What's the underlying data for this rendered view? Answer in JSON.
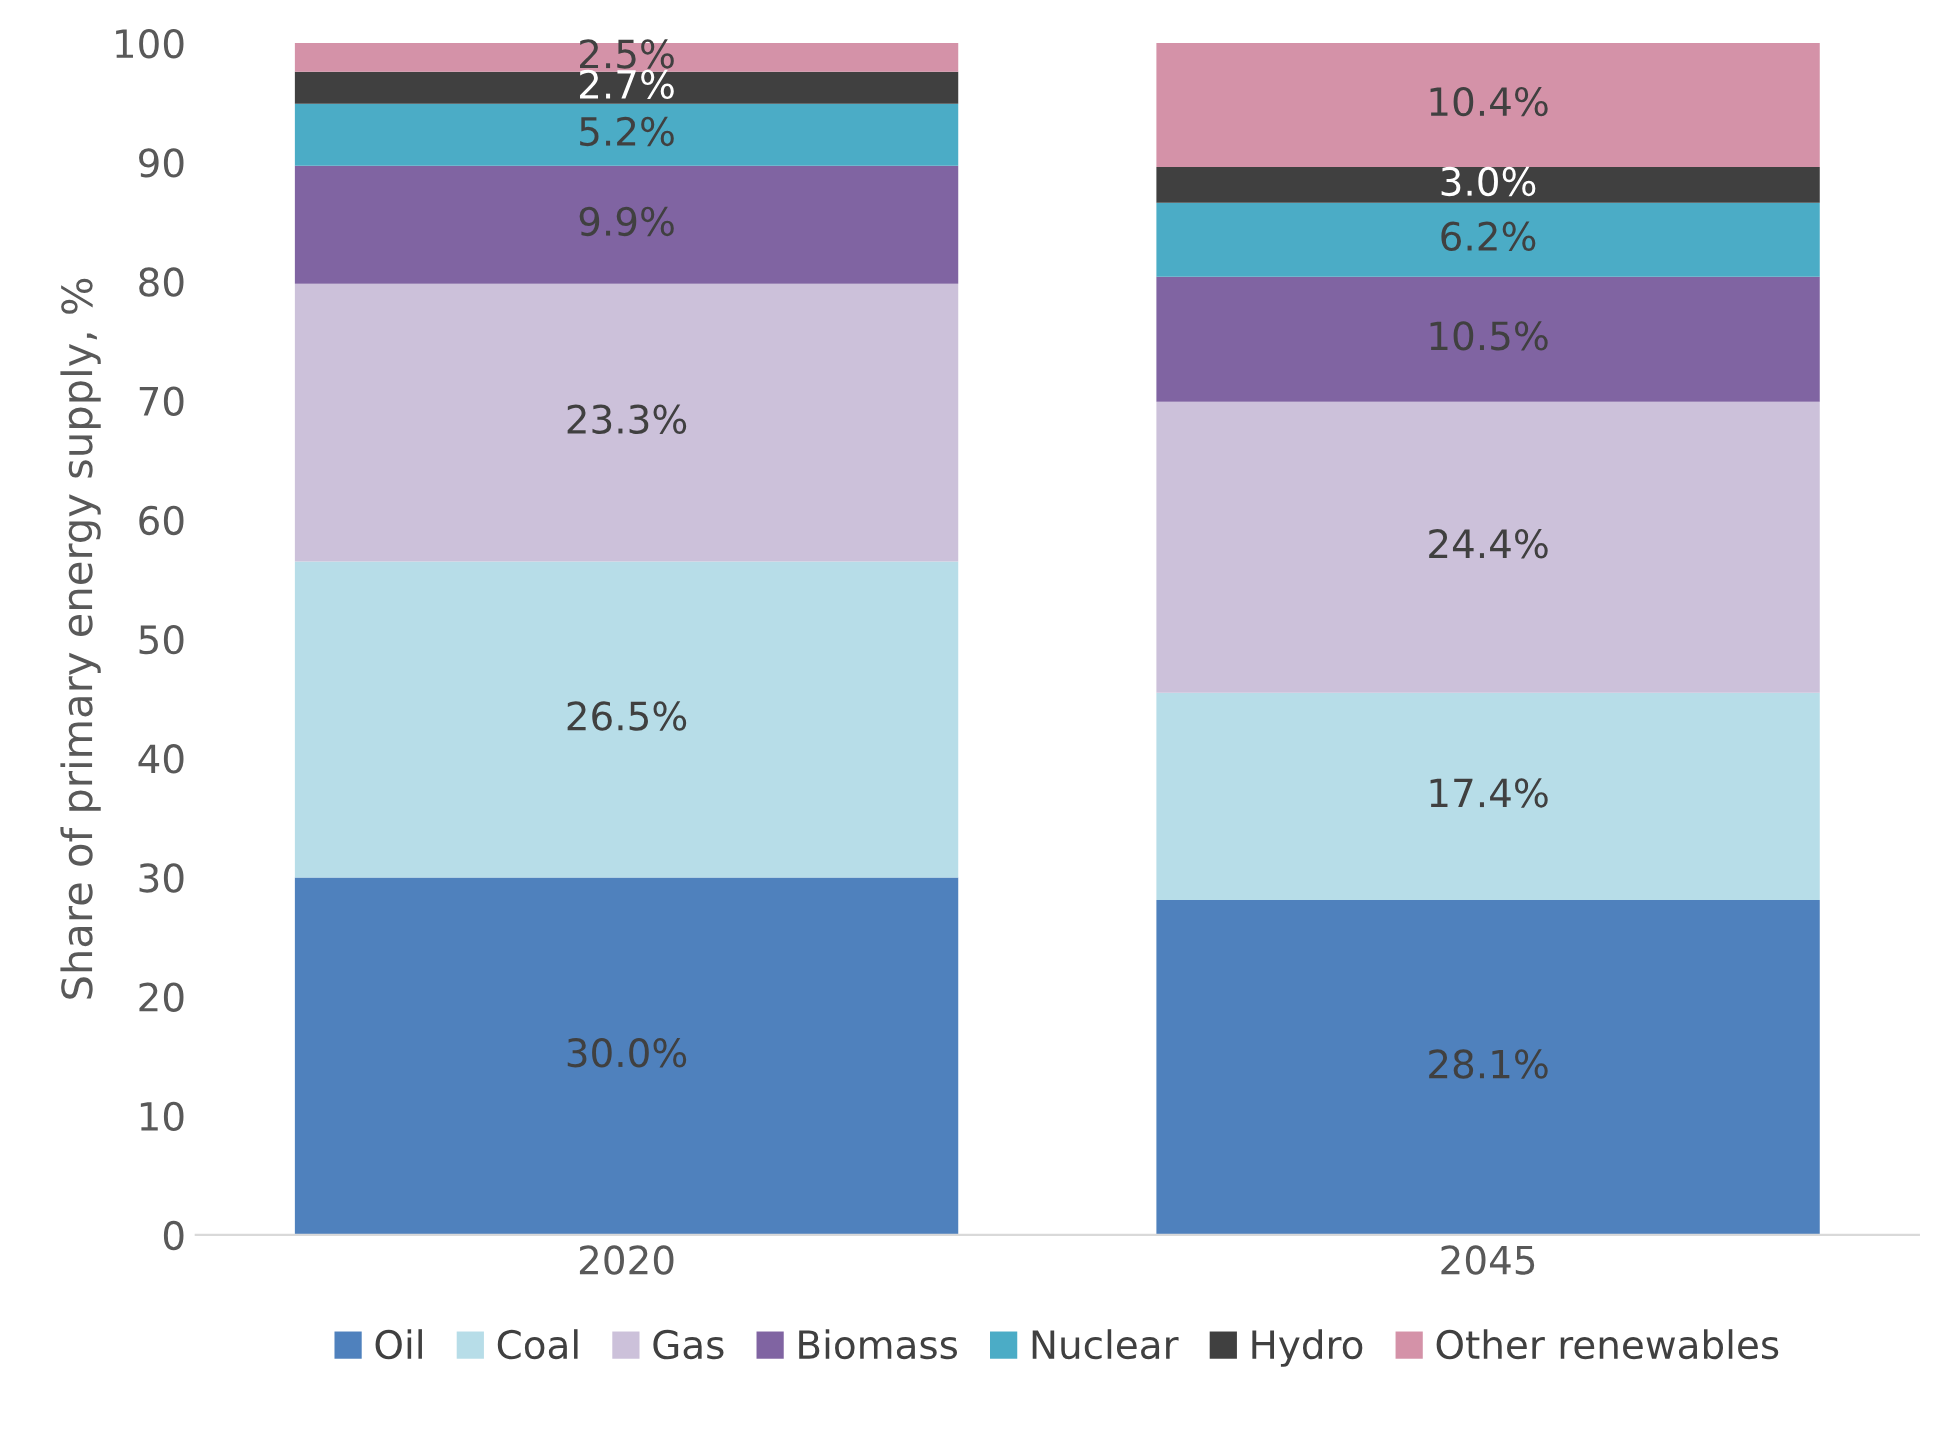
{
  "chart_data": {
    "type": "bar",
    "stacked": true,
    "ylabel": "Share of primary energy supply, %",
    "categories": [
      "2020",
      "2045"
    ],
    "series": [
      {
        "name": "Oil",
        "color": "#4f81bd",
        "values": [
          30.0,
          28.1
        ],
        "value_labels": [
          "30.0%",
          "28.1%"
        ]
      },
      {
        "name": "Coal",
        "color": "#b7dde8",
        "values": [
          26.5,
          17.4
        ],
        "value_labels": [
          "26.5%",
          "17.4%"
        ]
      },
      {
        "name": "Gas",
        "color": "#ccc1da",
        "values": [
          23.3,
          24.4
        ],
        "value_labels": [
          "23.3%",
          "24.4%"
        ]
      },
      {
        "name": "Biomass",
        "color": "#8064a2",
        "values": [
          9.9,
          10.5
        ],
        "value_labels": [
          "9.9%",
          "10.5%"
        ]
      },
      {
        "name": "Nuclear",
        "color": "#4bacc6",
        "values": [
          5.2,
          6.2
        ],
        "value_labels": [
          "5.2%",
          "6.2%"
        ]
      },
      {
        "name": "Hydro",
        "color": "#404040",
        "values": [
          2.7,
          3.0
        ],
        "value_labels": [
          "2.7%",
          "3.0%"
        ]
      },
      {
        "name": "Other renewables",
        "color": "#d492a8",
        "values": [
          2.5,
          10.4
        ],
        "value_labels": [
          "2.5%",
          "10.4%"
        ]
      }
    ],
    "ylim": [
      0,
      100
    ],
    "yticks": [
      0,
      10,
      20,
      30,
      40,
      50,
      60,
      70,
      80,
      90,
      100
    ],
    "legend": "bottom"
  }
}
